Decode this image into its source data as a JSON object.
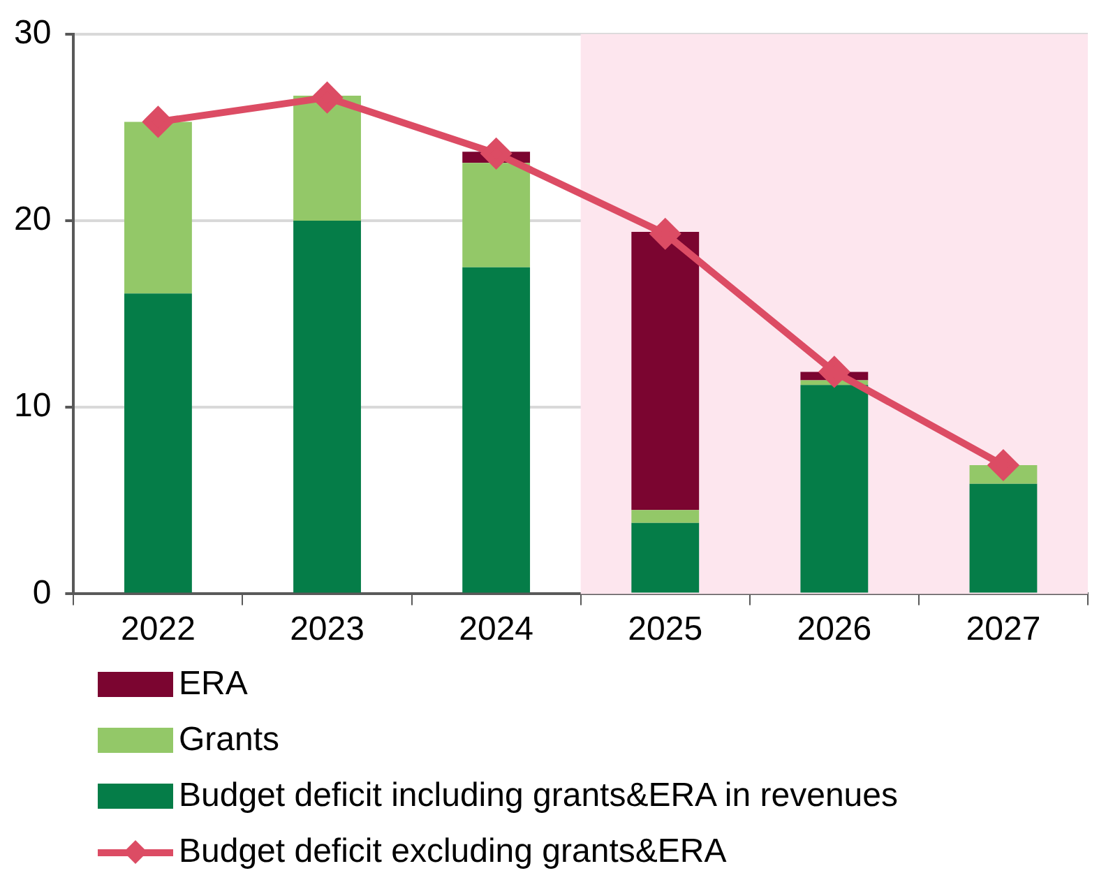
{
  "chart_data": {
    "type": "bar",
    "stacked": true,
    "categories": [
      "2022",
      "2023",
      "2024",
      "2025",
      "2026",
      "2027"
    ],
    "series": [
      {
        "name": "Budget deficit including grants&ERA in revenues",
        "color": "#057d48",
        "values": [
          16.1,
          20.0,
          17.5,
          3.8,
          11.2,
          5.9
        ]
      },
      {
        "name": "Grants",
        "color": "#93c868",
        "values": [
          9.2,
          6.7,
          5.6,
          0.7,
          0.25,
          1.0
        ]
      },
      {
        "name": "ERA",
        "color": "#7b0530",
        "values": [
          null,
          null,
          0.6,
          14.9,
          0.45,
          null
        ]
      },
      {
        "name": "Budget deficit excluding grants&ERA",
        "type": "line",
        "color": "#dc4c64",
        "marker": "diamond",
        "values": [
          25.3,
          26.6,
          23.6,
          19.3,
          11.9,
          6.9
        ]
      }
    ],
    "ylim": [
      0,
      30
    ],
    "yticks": [
      0,
      10,
      20,
      30
    ],
    "grid": "y",
    "legend": "bottom",
    "bands": [
      {
        "axis": "x",
        "from": "2025",
        "to": "2027",
        "color": "#fde6ee"
      }
    ]
  }
}
